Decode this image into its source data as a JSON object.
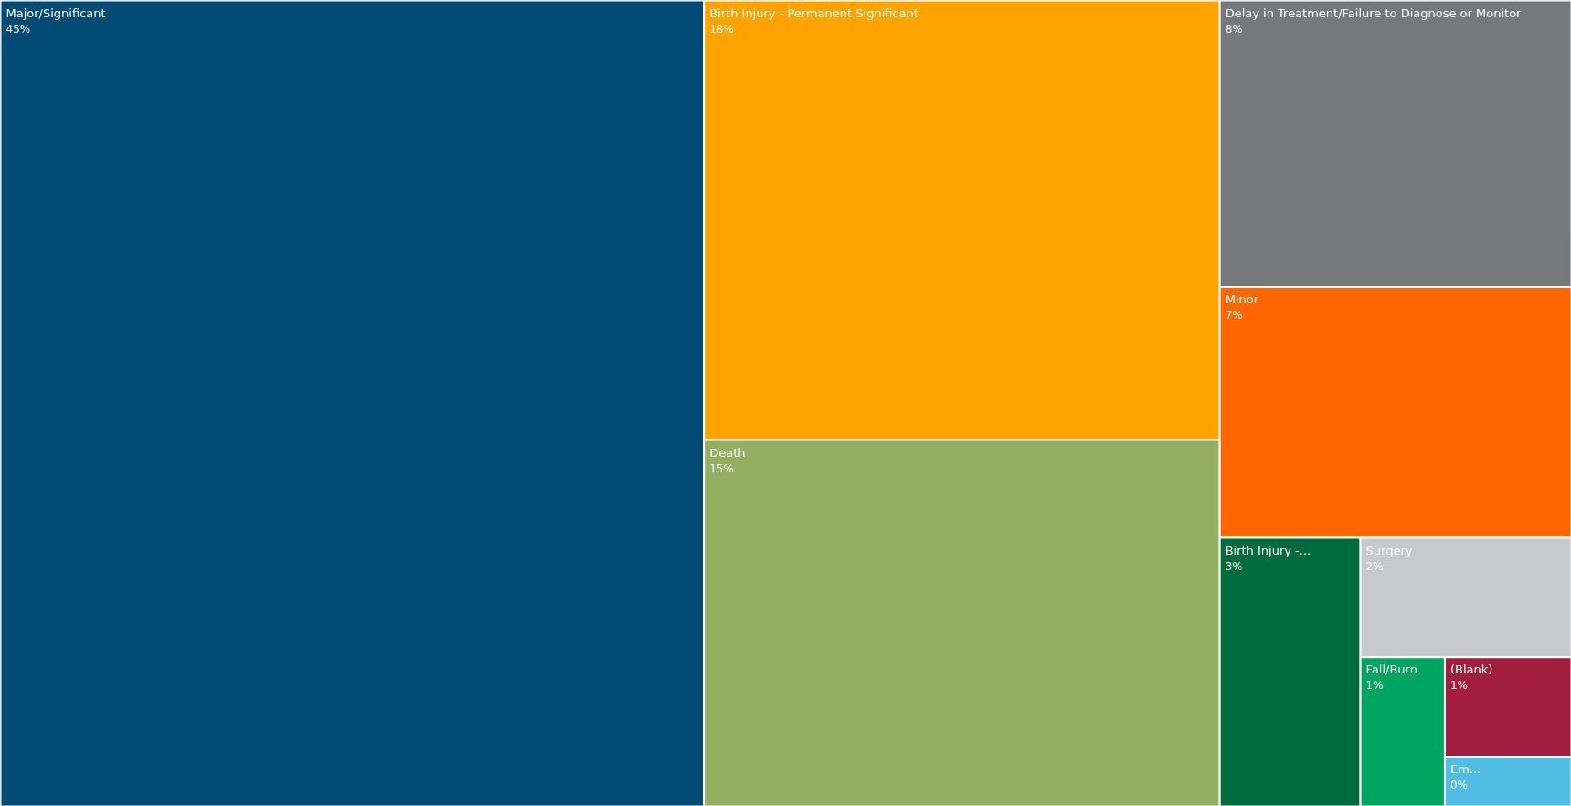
{
  "chart_data": {
    "type": "other",
    "categories": [
      "Major/Significant",
      "Birth Injury - Permanent Significant",
      "Death",
      "Delay in Treatment/Failure to Diagnose or Monitor",
      "Minor",
      "Birth Injury -...",
      "Surgery",
      "Fall/Burn",
      "(Blank)",
      "Em..."
    ],
    "values": [
      45,
      18,
      15,
      8,
      7,
      3,
      2,
      1,
      1,
      0
    ],
    "value_labels": [
      "45%",
      "18%",
      "15%",
      "8%",
      "7%",
      "3%",
      "2%",
      "1%",
      "1%",
      "0%"
    ],
    "colors": [
      "#004a74",
      "#ffa300",
      "#93b062",
      "#75797c",
      "#ff6600",
      "#006c3d",
      "#c8c9cb",
      "#00a65f",
      "#a31d3f",
      "#4fbde4"
    ]
  }
}
